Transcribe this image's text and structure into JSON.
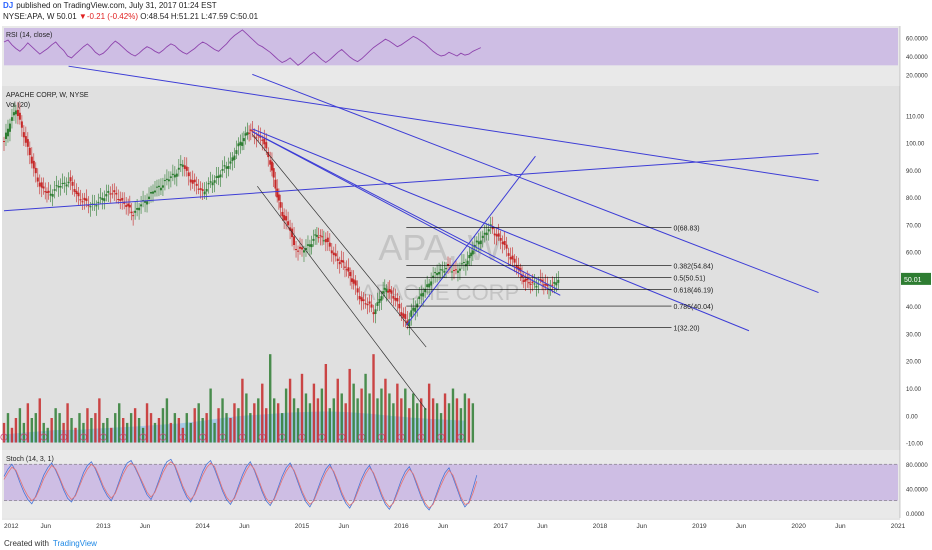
{
  "header": {
    "logo": "DJ",
    "published": "published on TradingView.com, July 31, 2017 01:24 EST",
    "symbol": "NYSE:APA, W",
    "last": "50.01",
    "arrow": "▼",
    "change": "-0.21 (-0.42%)",
    "ohlc": "O:48.54 H:51.21 L:47.59 C:50.01"
  },
  "footer": {
    "created_with": "Created with",
    "brand": "TradingView"
  },
  "watermark": {
    "ticker": "APA, W",
    "name": "APACHE CORP"
  },
  "chart_data": [
    {
      "type": "line",
      "title": "RSI (14, close)",
      "ylim": [
        10,
        70
      ],
      "y_ticks": [
        "20.0000",
        "40.0000",
        "60.0000"
      ],
      "band": [
        30,
        70
      ],
      "x_start": 2012.0,
      "x_step": 0.04,
      "series": [
        {
          "values": [
            55,
            57,
            52,
            48,
            45,
            49,
            54,
            50,
            46,
            42,
            45,
            48,
            52,
            55,
            50,
            46,
            40,
            38,
            42,
            46,
            50,
            53,
            49,
            44,
            41,
            43,
            47,
            52,
            56,
            53,
            49,
            45,
            42,
            40,
            43,
            47,
            50,
            48,
            45,
            43,
            46,
            50,
            53,
            51,
            47,
            44,
            42,
            45,
            48,
            52,
            55,
            53,
            50,
            47,
            45,
            49,
            53,
            58,
            62,
            65,
            68,
            64,
            60,
            56,
            52,
            50,
            47,
            44,
            40,
            36,
            33,
            35,
            38,
            34,
            30,
            33,
            37,
            41,
            44,
            40,
            36,
            33,
            36,
            40,
            44,
            47,
            43,
            39,
            36,
            34,
            37,
            41,
            45,
            49,
            52,
            55,
            58,
            56,
            53,
            50,
            52,
            55,
            58,
            61,
            59,
            56,
            53,
            49,
            45,
            42,
            40,
            41,
            44,
            42,
            40,
            43,
            41,
            42,
            45,
            47,
            49
          ]
        }
      ]
    },
    {
      "type": "line",
      "title": "APACHE CORP, W, NYSE",
      "subtitle": "Vol (20)",
      "ylim": [
        -12,
        120
      ],
      "y_ticks": [
        "-10.00",
        "0.00",
        "10.00",
        "20.00",
        "30.00",
        "40.00",
        "50.00",
        "60.00",
        "70.00",
        "80.00",
        "90.00",
        "100.00",
        "110.00"
      ],
      "x_ticks": [
        {
          "x": 2012.0,
          "label": "2012"
        },
        {
          "x": 2012.42,
          "label": "Jun"
        },
        {
          "x": 2013.0,
          "label": "2013"
        },
        {
          "x": 2013.42,
          "label": "Jun"
        },
        {
          "x": 2014.0,
          "label": "2014"
        },
        {
          "x": 2014.42,
          "label": "Jun"
        },
        {
          "x": 2015.0,
          "label": "2015"
        },
        {
          "x": 2015.42,
          "label": "Jun"
        },
        {
          "x": 2016.0,
          "label": "2016"
        },
        {
          "x": 2016.42,
          "label": "Jun"
        },
        {
          "x": 2017.0,
          "label": "2017"
        },
        {
          "x": 2017.42,
          "label": "Jun"
        },
        {
          "x": 2018.0,
          "label": "2018"
        },
        {
          "x": 2018.42,
          "label": "Jun"
        },
        {
          "x": 2019.0,
          "label": "2019"
        },
        {
          "x": 2019.42,
          "label": "Jun"
        },
        {
          "x": 2020.0,
          "label": "2020"
        },
        {
          "x": 2020.42,
          "label": "Jun"
        },
        {
          "x": 2021.0,
          "label": "2021"
        }
      ],
      "price_label": "50.01",
      "series": [
        {
          "name": "APA close",
          "points": [
            [
              2012.0,
              100
            ],
            [
              2012.06,
              108
            ],
            [
              2012.12,
              112
            ],
            [
              2012.2,
              103
            ],
            [
              2012.3,
              90
            ],
            [
              2012.38,
              83
            ],
            [
              2012.45,
              81
            ],
            [
              2012.55,
              84
            ],
            [
              2012.65,
              86
            ],
            [
              2012.75,
              80
            ],
            [
              2012.85,
              77
            ],
            [
              2012.95,
              78
            ],
            [
              2013.05,
              82
            ],
            [
              2013.15,
              80
            ],
            [
              2013.25,
              76
            ],
            [
              2013.3,
              74
            ],
            [
              2013.4,
              78
            ],
            [
              2013.5,
              82
            ],
            [
              2013.6,
              85
            ],
            [
              2013.7,
              88
            ],
            [
              2013.8,
              92
            ],
            [
              2013.9,
              85
            ],
            [
              2014.0,
              82
            ],
            [
              2014.08,
              85
            ],
            [
              2014.18,
              89
            ],
            [
              2014.28,
              93
            ],
            [
              2014.38,
              100
            ],
            [
              2014.45,
              104
            ],
            [
              2014.52,
              103
            ],
            [
              2014.6,
              101
            ],
            [
              2014.68,
              93
            ],
            [
              2014.75,
              80
            ],
            [
              2014.82,
              72
            ],
            [
              2014.88,
              68
            ],
            [
              2014.92,
              62
            ],
            [
              2015.0,
              60
            ],
            [
              2015.08,
              63
            ],
            [
              2015.15,
              66
            ],
            [
              2015.22,
              65
            ],
            [
              2015.3,
              60
            ],
            [
              2015.38,
              56
            ],
            [
              2015.45,
              54
            ],
            [
              2015.52,
              48
            ],
            [
              2015.6,
              42
            ],
            [
              2015.68,
              40
            ],
            [
              2015.72,
              38
            ],
            [
              2015.8,
              44
            ],
            [
              2015.85,
              47
            ],
            [
              2015.9,
              44
            ],
            [
              2015.96,
              41
            ],
            [
              2016.02,
              36
            ],
            [
              2016.06,
              33
            ],
            [
              2016.1,
              38
            ],
            [
              2016.2,
              44
            ],
            [
              2016.3,
              50
            ],
            [
              2016.38,
              53
            ],
            [
              2016.45,
              54
            ],
            [
              2016.55,
              53
            ],
            [
              2016.65,
              56
            ],
            [
              2016.72,
              61
            ],
            [
              2016.8,
              65
            ],
            [
              2016.9,
              69
            ],
            [
              2016.96,
              66
            ],
            [
              2017.02,
              63
            ],
            [
              2017.1,
              58
            ],
            [
              2017.18,
              53
            ],
            [
              2017.25,
              49
            ],
            [
              2017.32,
              48
            ],
            [
              2017.4,
              49
            ],
            [
              2017.47,
              47
            ],
            [
              2017.52,
              47
            ],
            [
              2017.58,
              50.01
            ]
          ]
        }
      ],
      "volume": {
        "x_start": 2012.0,
        "x_step": 0.04,
        "values": [
          4,
          6,
          3,
          5,
          7,
          4,
          8,
          5,
          6,
          9,
          4,
          3,
          5,
          7,
          6,
          4,
          8,
          5,
          3,
          6,
          4,
          7,
          5,
          6,
          9,
          4,
          5,
          3,
          6,
          8,
          5,
          4,
          6,
          7,
          5,
          3,
          8,
          6,
          4,
          5,
          7,
          9,
          4,
          6,
          5,
          3,
          6,
          4,
          7,
          8,
          5,
          6,
          11,
          4,
          7,
          9,
          6,
          5,
          8,
          7,
          13,
          10,
          6,
          8,
          9,
          12,
          7,
          18,
          9,
          8,
          6,
          11,
          13,
          9,
          7,
          14,
          10,
          8,
          12,
          9,
          11,
          16,
          7,
          9,
          13,
          10,
          8,
          15,
          12,
          9,
          11,
          14,
          10,
          18,
          9,
          11,
          13,
          10,
          8,
          12,
          9,
          11,
          7,
          10,
          8,
          9,
          7,
          12,
          9,
          8,
          6,
          10,
          8,
          11,
          9,
          7,
          10,
          9,
          8
        ],
        "ma_values": [
          3,
          3.2,
          3.5,
          3.8,
          4,
          4.2,
          4.5,
          4.6,
          4.6,
          4.7,
          4.8,
          5,
          5.2,
          5.3,
          5.5,
          5.6,
          5.8,
          6,
          6.2,
          6.4,
          6.6,
          6.8,
          7,
          7.3,
          7.6,
          8,
          8.4,
          8.8,
          9.2,
          9.5,
          9.8,
          10,
          10.2,
          10.4,
          10.6,
          10.8,
          11,
          11.1,
          11.2,
          11.3,
          11.4,
          11.4,
          11.3,
          11.2,
          11,
          10.8,
          10.6,
          10.3,
          10,
          9.7,
          9.5,
          9.2,
          9,
          8.8,
          8.6,
          8.5,
          8.3,
          8.2,
          8
        ]
      }
    },
    {
      "type": "line",
      "title": "Stoch (14, 3, 1)",
      "ylim": [
        -5,
        100
      ],
      "y_ticks": [
        "0.0000",
        "40.0000",
        "80.0000"
      ],
      "band": [
        20,
        80
      ],
      "x_start": 2012.0,
      "x_step": 0.04,
      "series": [
        {
          "values": [
            60,
            72,
            80,
            68,
            50,
            34,
            22,
            15,
            28,
            45,
            62,
            74,
            82,
            70,
            55,
            38,
            24,
            18,
            30,
            48,
            66,
            78,
            84,
            72,
            56,
            40,
            28,
            20,
            34,
            52,
            70,
            82,
            86,
            74,
            60,
            44,
            30,
            22,
            36,
            54,
            72,
            84,
            88,
            76,
            58,
            40,
            26,
            18,
            32,
            50,
            68,
            80,
            86,
            72,
            54,
            36,
            22,
            14,
            26,
            44,
            62,
            76,
            84,
            70,
            52,
            34,
            20,
            12,
            24,
            42,
            60,
            74,
            82,
            68,
            50,
            32,
            18,
            10,
            22,
            40,
            58,
            72,
            80,
            66,
            48,
            30,
            16,
            8,
            20,
            38,
            56,
            70,
            78,
            64,
            46,
            28,
            14,
            6,
            18,
            36,
            54,
            68,
            76,
            62,
            44,
            26,
            12,
            5,
            16,
            34,
            52,
            66,
            74,
            58,
            40,
            22,
            10,
            18,
            40,
            62
          ]
        },
        {
          "values": [
            55,
            66,
            75,
            70,
            55,
            40,
            28,
            20,
            26,
            40,
            56,
            68,
            78,
            72,
            58,
            42,
            30,
            22,
            28,
            44,
            60,
            72,
            80,
            74,
            60,
            44,
            32,
            24,
            32,
            48,
            64,
            76,
            82,
            76,
            62,
            48,
            34,
            26,
            34,
            50,
            66,
            78,
            84,
            78,
            62,
            44,
            30,
            22,
            30,
            46,
            62,
            74,
            82,
            76,
            58,
            40,
            26,
            18,
            24,
            40,
            56,
            70,
            80,
            72,
            56,
            38,
            24,
            16,
            22,
            38,
            54,
            68,
            78,
            70,
            54,
            36,
            22,
            14,
            20,
            36,
            52,
            66,
            76,
            68,
            52,
            34,
            20,
            12,
            18,
            34,
            50,
            64,
            74,
            66,
            50,
            32,
            18,
            10,
            16,
            32,
            48,
            62,
            72,
            64,
            48,
            30,
            16,
            8,
            14,
            30,
            46,
            60,
            70,
            62,
            44,
            26,
            14,
            16,
            32,
            52
          ]
        }
      ]
    }
  ],
  "trendlines": [
    {
      "x1": 2012.0,
      "y1": 75,
      "x2": 2020.2,
      "y2": 96
    },
    {
      "x1": 2012.65,
      "y1": 128,
      "x2": 2020.2,
      "y2": 86
    },
    {
      "x1": 2014.5,
      "y1": 125,
      "x2": 2020.2,
      "y2": 45
    },
    {
      "x1": 2014.5,
      "y1": 105,
      "x2": 2019.5,
      "y2": 31
    },
    {
      "x1": 2014.5,
      "y1": 104,
      "x2": 2017.58,
      "y2": 46
    },
    {
      "x1": 2014.5,
      "y1": 104,
      "x2": 2017.6,
      "y2": 44
    },
    {
      "x1": 2014.5,
      "y1": 103,
      "x2": 2016.25,
      "y2": 25
    },
    {
      "x1": 2014.55,
      "y1": 84,
      "x2": 2016.25,
      "y2": 2
    },
    {
      "x1": 2016.05,
      "y1": 33,
      "x2": 2017.35,
      "y2": 95
    }
  ],
  "fibonacci": [
    {
      "value": 68.83,
      "label": "0(68.83)"
    },
    {
      "value": 54.84,
      "label": "0.382(54.84)"
    },
    {
      "value": 50.51,
      "label": "0.5(50.51)"
    },
    {
      "value": 46.19,
      "label": "0.618(46.19)"
    },
    {
      "value": 40.04,
      "label": "0.786(40.04)"
    },
    {
      "value": 32.2,
      "label": "1(32.20)"
    }
  ],
  "colors": {
    "band_fill": "#c9b6e3",
    "rsi_line": "#8e44ad",
    "panel_bg": "#e0e0e0",
    "candle_up": "#2e7d32",
    "candle_down": "#c62828",
    "trendline": "#3d3dd6",
    "fib_line": "#000000",
    "stoch_k": "#4a76d6",
    "stoch_d": "#e57373",
    "volume_ma": "#8fc1e8",
    "price_badge": "#2e7d32"
  }
}
